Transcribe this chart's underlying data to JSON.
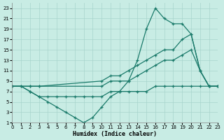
{
  "xlabel": "Humidex (Indice chaleur)",
  "bg_color": "#c8ece4",
  "grid_color": "#a8d4cc",
  "line_color": "#1a7a6a",
  "xlim": [
    0,
    23
  ],
  "ylim": [
    1,
    24
  ],
  "xticks": [
    0,
    1,
    2,
    3,
    4,
    5,
    6,
    7,
    8,
    9,
    10,
    11,
    12,
    13,
    14,
    15,
    16,
    17,
    18,
    19,
    20,
    21,
    22,
    23
  ],
  "yticks": [
    1,
    3,
    5,
    7,
    9,
    11,
    13,
    15,
    17,
    19,
    21,
    23
  ],
  "line1_x": [
    0,
    1,
    2,
    3,
    4,
    5,
    6,
    7,
    8,
    9,
    10,
    11,
    12,
    13,
    14,
    15,
    16,
    17,
    18,
    19,
    20,
    21,
    22,
    23
  ],
  "line1_y": [
    8,
    8,
    7,
    6,
    5,
    4,
    3,
    2,
    1,
    2,
    4,
    6,
    7,
    9,
    13,
    19,
    23,
    21,
    20,
    20,
    18,
    11,
    8,
    8
  ],
  "line2_x": [
    0,
    2,
    3,
    10,
    11,
    12,
    13,
    14,
    15,
    16,
    17,
    18,
    19,
    20,
    21,
    22,
    23
  ],
  "line2_y": [
    8,
    8,
    8,
    9,
    10,
    10,
    11,
    12,
    13,
    14,
    15,
    15,
    17,
    18,
    11,
    8,
    8
  ],
  "line3_x": [
    0,
    2,
    3,
    10,
    11,
    12,
    13,
    14,
    15,
    16,
    17,
    18,
    19,
    20,
    21,
    22,
    23
  ],
  "line3_y": [
    8,
    8,
    8,
    8,
    9,
    9,
    9,
    10,
    11,
    12,
    13,
    13,
    14,
    15,
    11,
    8,
    8
  ],
  "line4_x": [
    0,
    1,
    2,
    3,
    4,
    5,
    6,
    7,
    8,
    9,
    10,
    11,
    12,
    13,
    14,
    15,
    16,
    17,
    18,
    19,
    20,
    21,
    22,
    23
  ],
  "line4_y": [
    8,
    8,
    7,
    6,
    6,
    6,
    6,
    6,
    6,
    6,
    6,
    7,
    7,
    7,
    7,
    7,
    8,
    8,
    8,
    8,
    8,
    8,
    8,
    8
  ]
}
